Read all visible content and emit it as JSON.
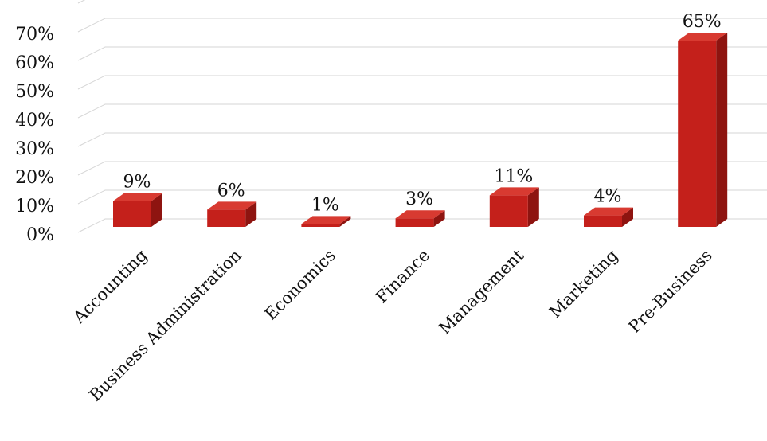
{
  "chart_data": {
    "type": "bar",
    "style": "3d-column",
    "categories": [
      "Accounting",
      "Business Administration",
      "Economics",
      "Finance",
      "Management",
      "Marketing",
      "Pre-Business"
    ],
    "values": [
      9,
      6,
      1,
      3,
      11,
      4,
      65
    ],
    "data_labels": [
      "9%",
      "6%",
      "1%",
      "3%",
      "11%",
      "4%",
      "65%"
    ],
    "y_ticks": [
      "0%",
      "10%",
      "20%",
      "30%",
      "40%",
      "50%",
      "60%",
      "70%"
    ],
    "ylim": [
      0,
      70
    ],
    "grid": true,
    "legend": "none",
    "colors": {
      "bar_front": "#c4201b",
      "bar_top": "#d83a31",
      "bar_side": "#8e1410",
      "grid": "#d6d6d6"
    }
  }
}
